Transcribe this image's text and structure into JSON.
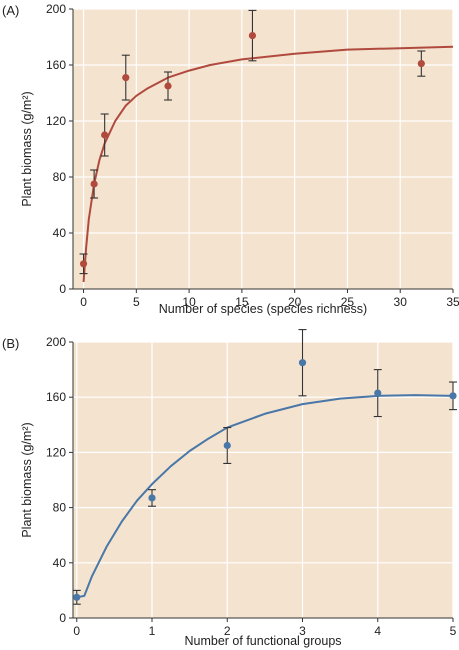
{
  "colors": {
    "plot_background": "#f4e3cf",
    "grid": "#ffffff",
    "panel_a_series": "#b04a3e",
    "panel_b_series": "#4877a8"
  },
  "chart_data": [
    {
      "type": "scatter",
      "panel_label": "(A)",
      "xlabel": "Number of species (species richness)",
      "ylabel": "Plant biomass (g/m²)",
      "xlim": [
        -1,
        35
      ],
      "ylim": [
        0,
        200
      ],
      "xticks": [
        0,
        5,
        10,
        15,
        20,
        25,
        30,
        35
      ],
      "yticks": [
        0,
        40,
        80,
        120,
        160,
        200
      ],
      "grid": true,
      "series_color": "#b04a3e",
      "points": [
        {
          "x": 0,
          "y": 18,
          "err": 7
        },
        {
          "x": 1,
          "y": 75,
          "err": 10
        },
        {
          "x": 2,
          "y": 110,
          "err": 15
        },
        {
          "x": 4,
          "y": 151,
          "err": 16
        },
        {
          "x": 8,
          "y": 145,
          "err": 10
        },
        {
          "x": 16,
          "y": 181,
          "err": 18
        },
        {
          "x": 32,
          "y": 161,
          "err": 9
        }
      ],
      "fit_curve": [
        [
          0,
          5
        ],
        [
          0.25,
          30
        ],
        [
          0.5,
          50
        ],
        [
          1,
          75
        ],
        [
          1.5,
          92
        ],
        [
          2,
          104
        ],
        [
          3,
          120
        ],
        [
          4,
          131
        ],
        [
          5,
          138
        ],
        [
          6,
          143
        ],
        [
          8,
          151
        ],
        [
          10,
          156
        ],
        [
          12,
          160
        ],
        [
          15,
          164
        ],
        [
          20,
          168
        ],
        [
          25,
          171
        ],
        [
          30,
          172
        ],
        [
          35,
          173
        ]
      ]
    },
    {
      "type": "scatter",
      "panel_label": "(B)",
      "xlabel": "Number of functional groups",
      "ylabel": "Plant biomass (g/m²)",
      "xlim": [
        -0.05,
        5
      ],
      "ylim": [
        0,
        200
      ],
      "xticks": [
        0,
        1,
        2,
        3,
        4,
        5
      ],
      "yticks": [
        0,
        40,
        80,
        120,
        160,
        200
      ],
      "grid": true,
      "series_color": "#4877a8",
      "points": [
        {
          "x": 0,
          "y": 15,
          "err": 5
        },
        {
          "x": 1,
          "y": 87,
          "err": 6
        },
        {
          "x": 2,
          "y": 125,
          "err": 13
        },
        {
          "x": 3,
          "y": 185,
          "err": 24
        },
        {
          "x": 4,
          "y": 163,
          "err": 17
        },
        {
          "x": 5,
          "y": 161,
          "err": 10
        }
      ],
      "fit_curve": [
        [
          0,
          15
        ],
        [
          0.1,
          16
        ],
        [
          0.2,
          30
        ],
        [
          0.4,
          52
        ],
        [
          0.6,
          70
        ],
        [
          0.8,
          85
        ],
        [
          1,
          97
        ],
        [
          1.25,
          110
        ],
        [
          1.5,
          121
        ],
        [
          1.75,
          130
        ],
        [
          2,
          138
        ],
        [
          2.5,
          148
        ],
        [
          3,
          155
        ],
        [
          3.5,
          159
        ],
        [
          4,
          161
        ],
        [
          4.5,
          161.5
        ],
        [
          5,
          161
        ]
      ]
    }
  ]
}
